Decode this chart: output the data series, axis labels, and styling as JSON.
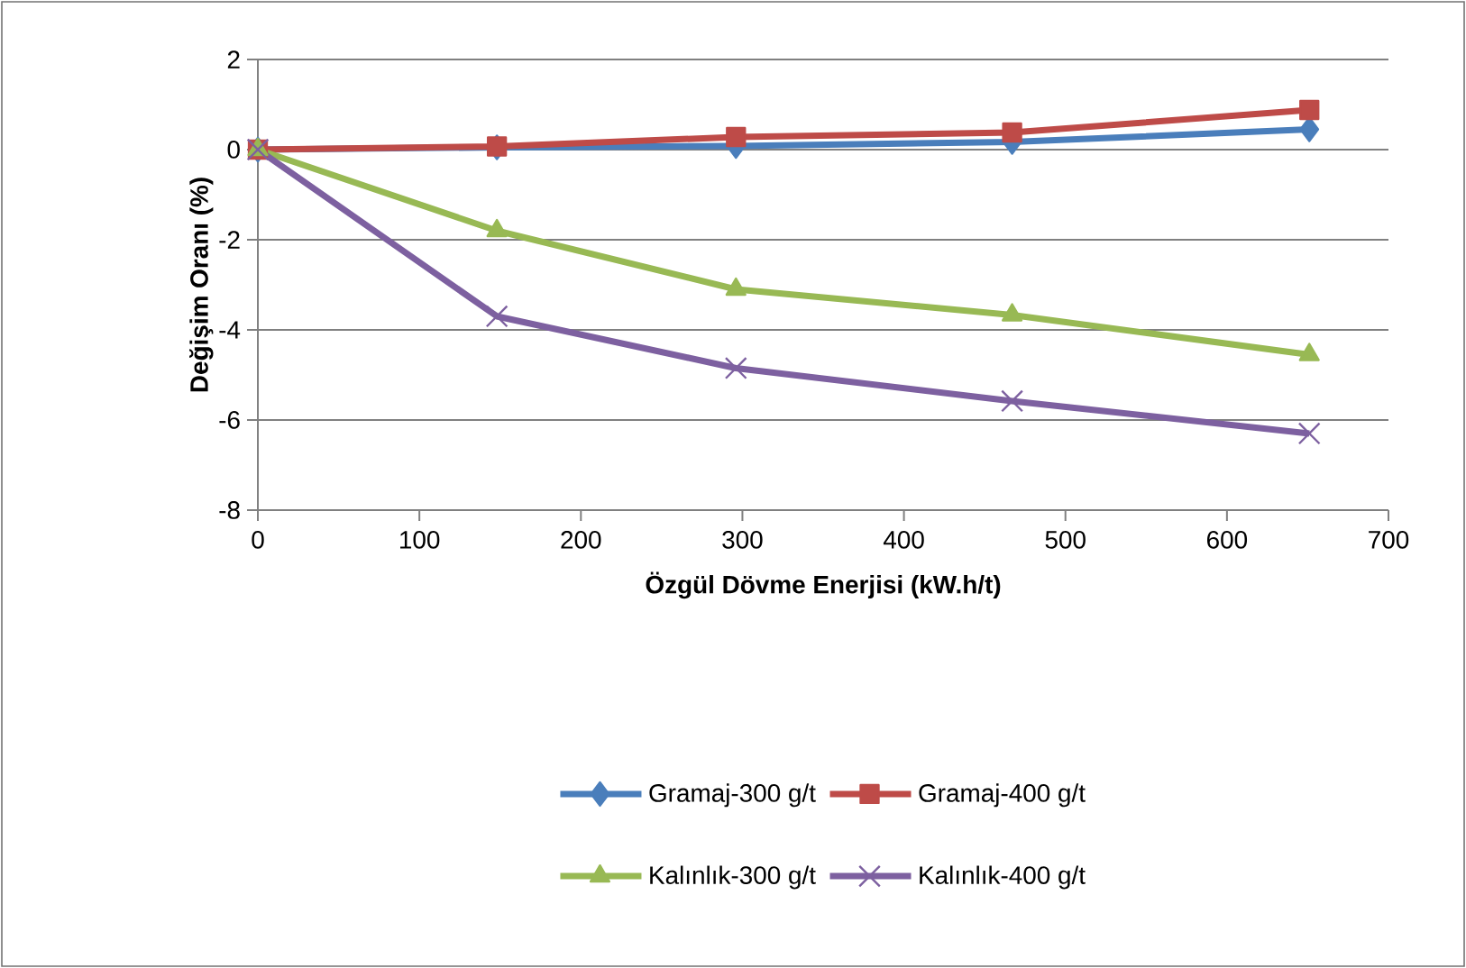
{
  "chart_data": {
    "type": "line",
    "xlabel": "Özgül Dövme Enerjisi (kW.h/t)",
    "ylabel": "Değişim Oranı (%)",
    "x": [
      0,
      148,
      296,
      467,
      651
    ],
    "series": [
      {
        "name": "Gramaj-300 g/t",
        "color": "#4a7ebb",
        "marker": "diamond",
        "values": [
          0,
          0.05,
          0.08,
          0.17,
          0.45
        ]
      },
      {
        "name": "Gramaj-400 g/t",
        "color": "#be4b48",
        "marker": "square",
        "values": [
          0,
          0.07,
          0.28,
          0.38,
          0.88
        ]
      },
      {
        "name": "Kalınlık-300 g/t",
        "color": "#98b954",
        "marker": "triangle",
        "values": [
          0,
          -1.8,
          -3.1,
          -3.67,
          -4.55
        ]
      },
      {
        "name": "Kalınlık-400 g/t",
        "color": "#7d60a0",
        "marker": "cross",
        "values": [
          0,
          -3.7,
          -4.85,
          -5.58,
          -6.3
        ]
      }
    ],
    "xlim": [
      0,
      700
    ],
    "xticks": [
      0,
      100,
      200,
      300,
      400,
      500,
      600,
      700
    ],
    "ylim": [
      -8,
      2
    ],
    "yticks": [
      -8,
      -6,
      -4,
      -2,
      0,
      2
    ],
    "grid": "y",
    "legend": "bottom",
    "line_style": "solid"
  }
}
